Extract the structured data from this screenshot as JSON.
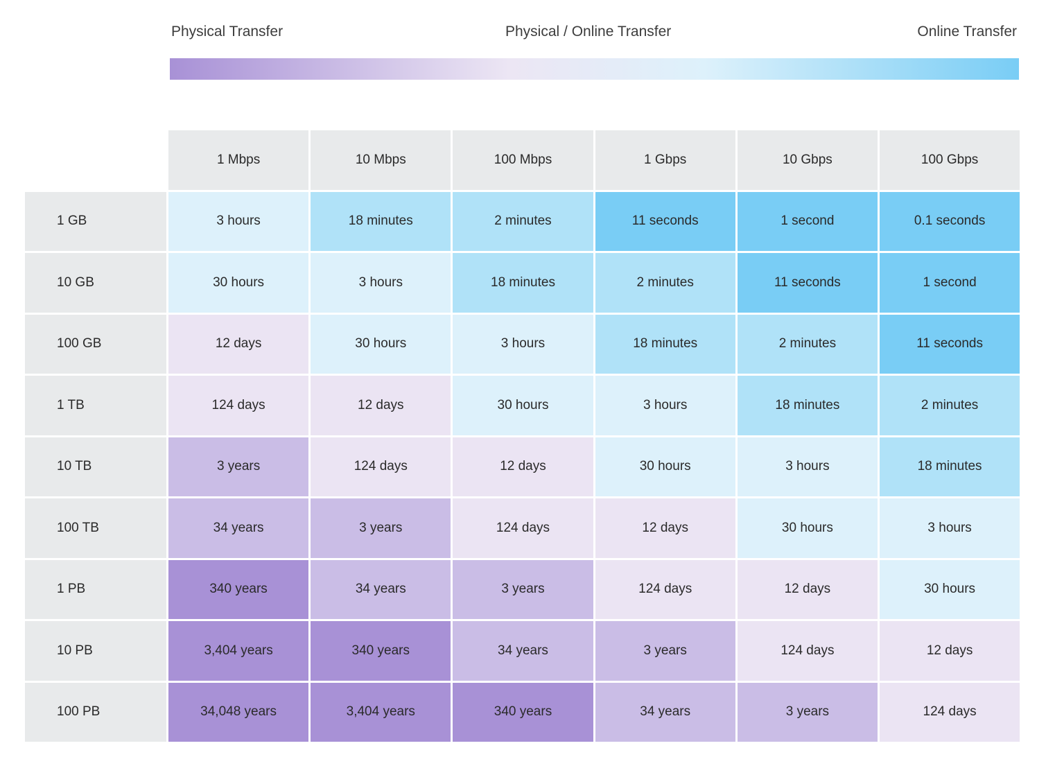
{
  "legend": {
    "left_label": "Physical Transfer",
    "middle_label": "Physical / Online Transfer",
    "right_label": "Online Transfer",
    "gradient_stops": [
      "#a891d6",
      "#ece6f4",
      "#ddf1fb",
      "#79cdf5"
    ]
  },
  "colors": {
    "header_bg": "#e8eaeb",
    "levels": [
      "#ddf1fb",
      "#b0e2f8",
      "#79cdf5",
      "#ebe4f3",
      "#cabde6",
      "#a891d6"
    ],
    "level_names": [
      "hours",
      "minutes",
      "seconds",
      "days",
      "years-low",
      "years-high"
    ]
  },
  "chart_data": {
    "type": "table",
    "columns": [
      "1 Mbps",
      "10 Mbps",
      "100 Mbps",
      "1 Gbps",
      "10 Gbps",
      "100 Gbps"
    ],
    "rows": [
      "1 GB",
      "10 GB",
      "100 GB",
      "1 TB",
      "10 TB",
      "100 TB",
      "1 PB",
      "10 PB",
      "100 PB"
    ],
    "cells": [
      [
        "3 hours",
        "18 minutes",
        "2 minutes",
        "11 seconds",
        "1 second",
        "0.1 seconds"
      ],
      [
        "30 hours",
        "3 hours",
        "18 minutes",
        "2 minutes",
        "11 seconds",
        "1 second"
      ],
      [
        "12 days",
        "30 hours",
        "3 hours",
        "18 minutes",
        "2 minutes",
        "11 seconds"
      ],
      [
        "124 days",
        "12 days",
        "30 hours",
        "3 hours",
        "18 minutes",
        "2 minutes"
      ],
      [
        "3 years",
        "124 days",
        "12 days",
        "30 hours",
        "3 hours",
        "18 minutes"
      ],
      [
        "34 years",
        "3 years",
        "124 days",
        "12 days",
        "30 hours",
        "3 hours"
      ],
      [
        "340 years",
        "34 years",
        "3 years",
        "124 days",
        "12 days",
        "30 hours"
      ],
      [
        "3,404 years",
        "340 years",
        "34 years",
        "3 years",
        "124 days",
        "12 days"
      ],
      [
        "34,048 years",
        "3,404 years",
        "340 years",
        "34 years",
        "3 years",
        "124 days"
      ]
    ],
    "levels": [
      [
        0,
        1,
        1,
        2,
        2,
        2
      ],
      [
        0,
        0,
        1,
        1,
        2,
        2
      ],
      [
        3,
        0,
        0,
        1,
        1,
        2
      ],
      [
        3,
        3,
        0,
        0,
        1,
        1
      ],
      [
        4,
        3,
        3,
        0,
        0,
        1
      ],
      [
        4,
        4,
        3,
        3,
        0,
        0
      ],
      [
        5,
        4,
        4,
        3,
        3,
        0
      ],
      [
        5,
        5,
        4,
        4,
        3,
        3
      ],
      [
        5,
        5,
        5,
        4,
        4,
        3
      ]
    ]
  }
}
